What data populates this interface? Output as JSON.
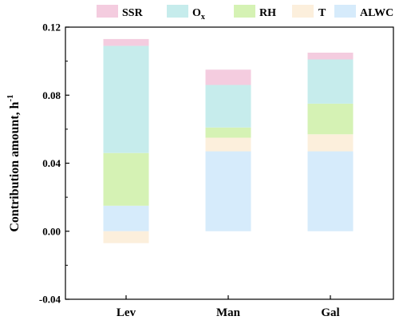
{
  "chart_data": {
    "type": "bar",
    "stacked": true,
    "title": "",
    "xlabel": "",
    "ylabel": "Contribution amount, h",
    "ylabel_superscript": "-1",
    "categories": [
      "Lev",
      "Man",
      "Gal"
    ],
    "ylim": [
      -0.04,
      0.12
    ],
    "yticks": [
      -0.04,
      0.0,
      0.04,
      0.08,
      0.12
    ],
    "ytick_labels": [
      "-0.04",
      "0.00",
      "0.04",
      "0.08",
      "0.12"
    ],
    "grid": false,
    "legend_position": "top",
    "series": [
      {
        "name": "ALWC",
        "color": "#d6ebfb",
        "values": [
          0.015,
          0.047,
          0.047
        ]
      },
      {
        "name": "T",
        "color": "#fcefdc",
        "values": [
          -0.007,
          0.008,
          0.01
        ]
      },
      {
        "name": "RH",
        "color": "#d5f2b4",
        "values": [
          0.031,
          0.006,
          0.018
        ]
      },
      {
        "name": "Ox",
        "name_main": "O",
        "name_sub": "x",
        "color": "#c6ecec",
        "values": [
          0.063,
          0.025,
          0.026
        ]
      },
      {
        "name": "SSR",
        "color": "#f4ccdf",
        "values": [
          0.004,
          0.009,
          0.004
        ]
      }
    ],
    "legend_order": [
      "SSR",
      "Ox",
      "RH",
      "T",
      "ALWC"
    ]
  }
}
